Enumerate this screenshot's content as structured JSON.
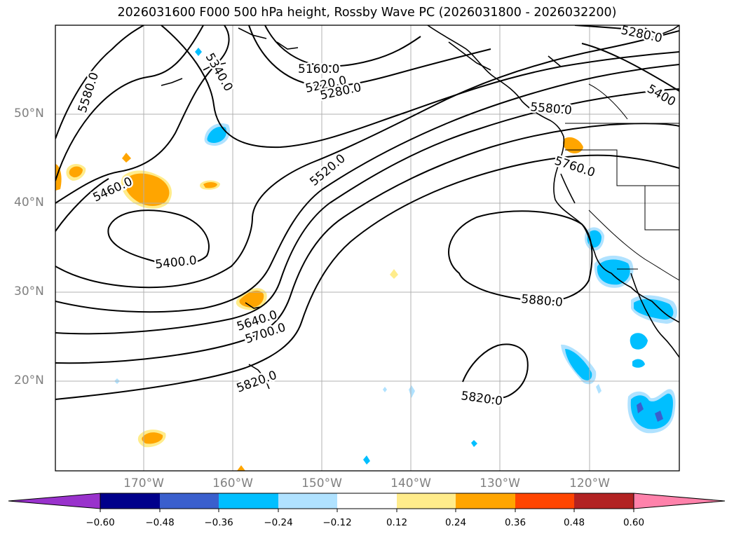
{
  "title": "2026031600 F000 500 hPa height, Rossby Wave PC (2026031800 - 2026032200)",
  "lat_labels": [
    "50°N",
    "40°N",
    "30°N",
    "20°N"
  ],
  "lon_labels": [
    "170°W",
    "160°W",
    "150°W",
    "140°W",
    "130°W",
    "120°W"
  ],
  "contour_labels": [
    "5280.0",
    "5340.0",
    "5160.0",
    "5220.0",
    "5280.0",
    "5400",
    "5580.0",
    "5580.0",
    "5760.0",
    "5520.0",
    "5460.0",
    "5400.0",
    "5880.0",
    "5640.0",
    "5700.0",
    "5820.0",
    "5820.0"
  ],
  "colorbar": {
    "tick_labels": [
      "−0.60",
      "−0.48",
      "−0.36",
      "−0.24",
      "−0.12",
      "0.12",
      "0.24",
      "0.36",
      "0.48",
      "0.60"
    ],
    "colors": [
      "#9932cc",
      "#00008b",
      "#3a5fcd",
      "#00bfff",
      "#b0e2ff",
      "#ffffff",
      "#ffec8b",
      "#ffa500",
      "#ff4500",
      "#b22222",
      "#ff82ab"
    ]
  },
  "colors": {
    "positive_shade": "#ffa500",
    "positive_light": "#ffec8b",
    "negative_shade": "#00bfff",
    "negative_light": "#b0e2ff",
    "negative_deep": "#3a5fcd",
    "contour": "#000000",
    "grid": "#b0b0b0"
  }
}
